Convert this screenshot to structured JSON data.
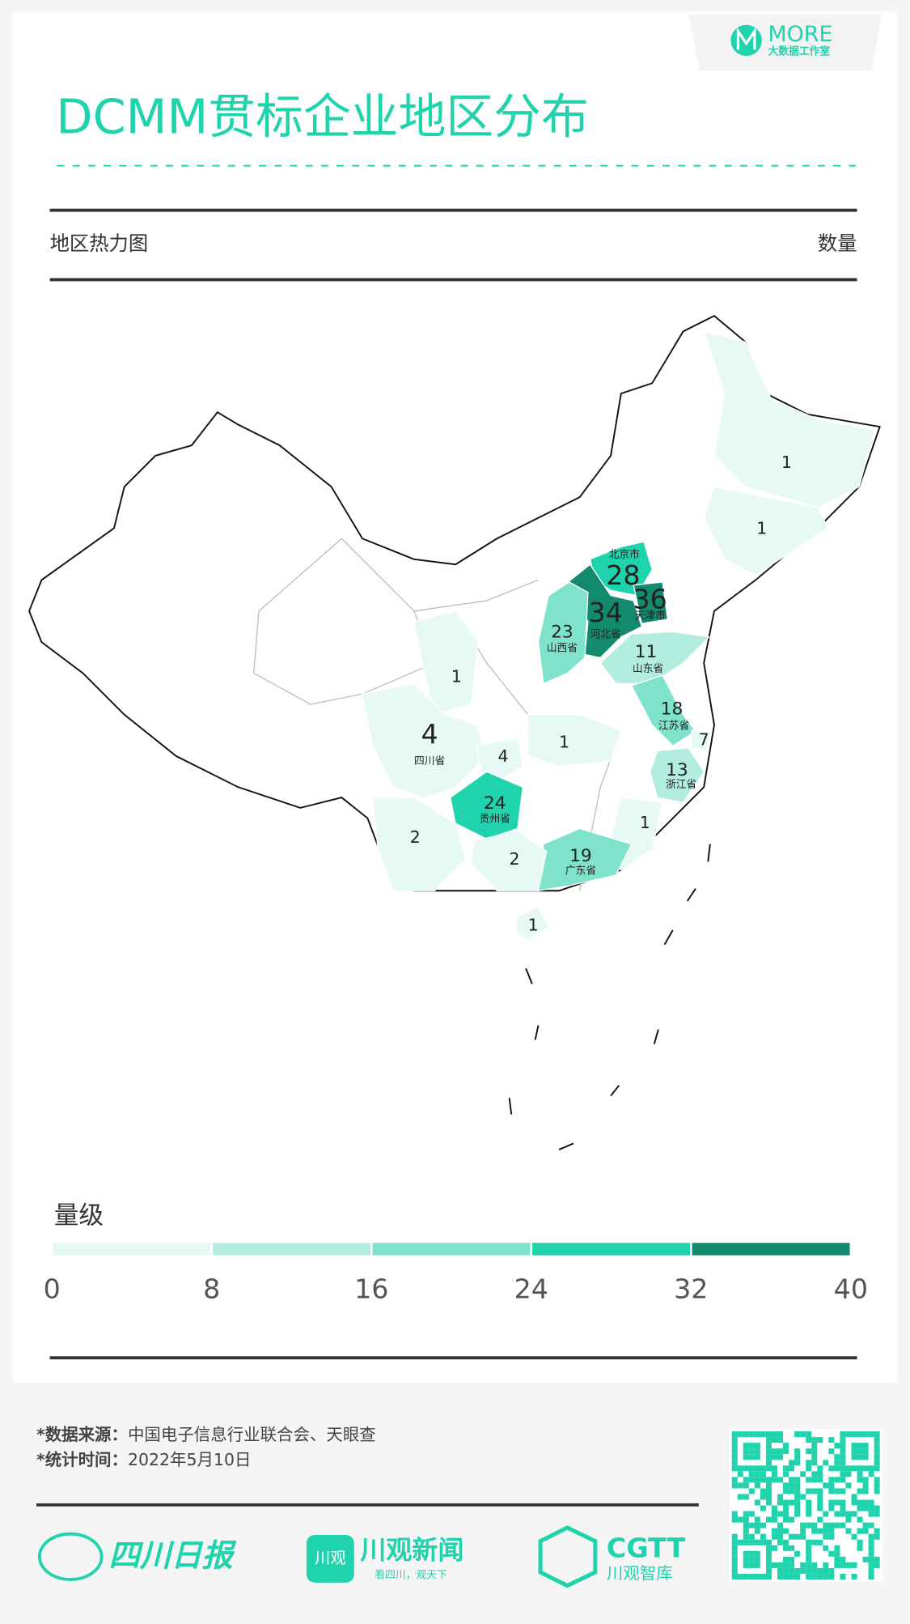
{
  "header": {
    "logo": {
      "brand": "MORE",
      "sub": "大数据工作室"
    },
    "title": "DCMM贯标企业地区分布"
  },
  "map": {
    "title": "地区热力图",
    "unit": "数量",
    "regions": [
      {
        "value": 1
      },
      {
        "value": 1
      },
      {
        "name": "北京市",
        "value": 28
      },
      {
        "name": "天津市",
        "value": 36
      },
      {
        "name": "河北省",
        "value": 34
      },
      {
        "name": "山西省",
        "value": 23
      },
      {
        "name": "山东省",
        "value": 11
      },
      {
        "name": "江苏省",
        "value": 18
      },
      {
        "value": 7
      },
      {
        "name": "浙江省",
        "value": 13
      },
      {
        "value": 1
      },
      {
        "name": "四川省",
        "value": 4
      },
      {
        "value": 4
      },
      {
        "value": 1
      },
      {
        "name": "贵州省",
        "value": 24
      },
      {
        "value": 1
      },
      {
        "name": "广东省",
        "value": 19
      },
      {
        "value": 2
      },
      {
        "value": 2
      },
      {
        "value": 1
      }
    ],
    "legend": {
      "title": "量级",
      "ticks": [
        0,
        8,
        16,
        24,
        32,
        40
      ],
      "colors": [
        "#e6f9f4",
        "#b3ede0",
        "#7fe3cc",
        "#1fd3ad",
        "#138a6e"
      ]
    }
  },
  "footer": {
    "source": {
      "label": "*数据来源：",
      "text": "中国电子信息行业联合会、天眼查"
    },
    "date": {
      "label": "*统计时间：",
      "text": "2022年5月10日"
    },
    "logos": [
      "四川日报",
      "川观",
      "川观新闻",
      "看四川，观天下",
      "CGTT",
      "川观智库"
    ]
  }
}
